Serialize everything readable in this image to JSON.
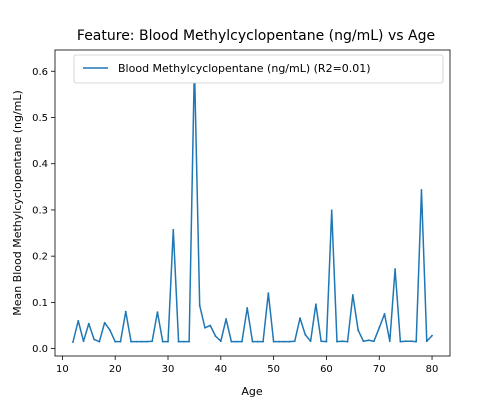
{
  "chart_data": {
    "type": "line",
    "title": "Feature: Blood Methylcyclopentane (ng/mL) vs Age",
    "xlabel": "Age",
    "ylabel": "Mean Blood Methylcyclopentane (ng/mL)",
    "xlim": [
      8.6,
      83.4
    ],
    "ylim": [
      -0.016,
      0.646
    ],
    "xticks": [
      10,
      20,
      30,
      40,
      50,
      60,
      70,
      80
    ],
    "yticks": [
      0.0,
      0.1,
      0.2,
      0.3,
      0.4,
      0.5,
      0.6
    ],
    "grid": false,
    "legend_position": "top",
    "series": [
      {
        "name": "Blood Methylcyclopentane (ng/mL) (R2=0.01)",
        "color": "#1f77b4",
        "x": [
          12,
          13,
          14,
          15,
          16,
          17,
          18,
          19,
          20,
          21,
          22,
          23,
          24,
          25,
          26,
          27,
          28,
          29,
          30,
          31,
          32,
          33,
          34,
          35,
          36,
          37,
          38,
          39,
          40,
          41,
          42,
          43,
          44,
          45,
          46,
          47,
          48,
          49,
          50,
          51,
          52,
          53,
          54,
          55,
          56,
          57,
          58,
          59,
          60,
          61,
          62,
          63,
          64,
          65,
          66,
          67,
          68,
          69,
          70,
          71,
          72,
          73,
          74,
          75,
          76,
          77,
          78,
          79,
          80
        ],
        "y": [
          0.014,
          0.06,
          0.016,
          0.054,
          0.02,
          0.015,
          0.056,
          0.04,
          0.015,
          0.015,
          0.08,
          0.015,
          0.015,
          0.015,
          0.015,
          0.016,
          0.079,
          0.015,
          0.015,
          0.257,
          0.015,
          0.015,
          0.015,
          0.615,
          0.093,
          0.045,
          0.05,
          0.027,
          0.016,
          0.064,
          0.015,
          0.015,
          0.015,
          0.088,
          0.015,
          0.015,
          0.015,
          0.12,
          0.015,
          0.015,
          0.015,
          0.015,
          0.016,
          0.066,
          0.03,
          0.016,
          0.096,
          0.016,
          0.015,
          0.299,
          0.015,
          0.016,
          0.015,
          0.116,
          0.04,
          0.016,
          0.018,
          0.016,
          0.045,
          0.075,
          0.016,
          0.172,
          0.015,
          0.016,
          0.016,
          0.015,
          0.343,
          0.016,
          0.028
        ]
      }
    ]
  }
}
